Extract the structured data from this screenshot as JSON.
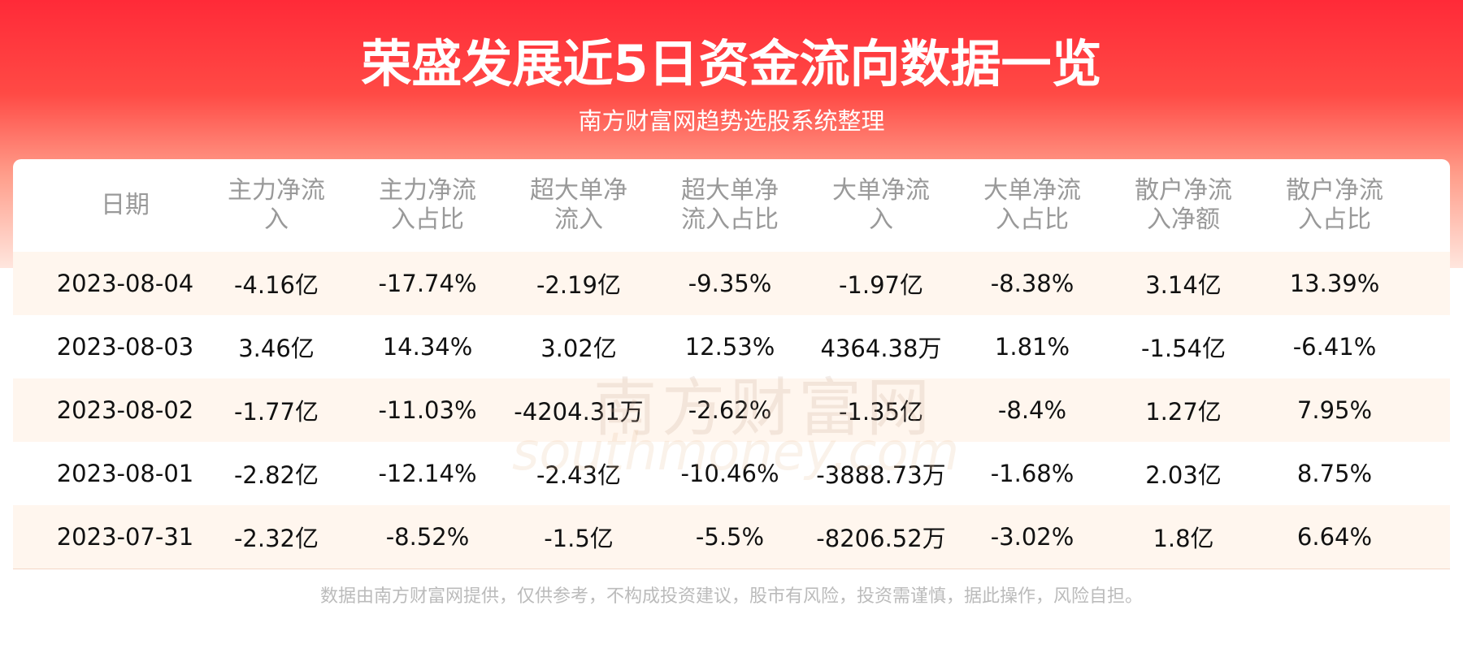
{
  "header": {
    "title": "荣盛发展近5日资金流向数据一览",
    "subtitle": "南方财富网趋势选股系统整理"
  },
  "watermark": {
    "name": "南方财富网",
    "site": "southmoney.com"
  },
  "table": {
    "columns": [
      "日期",
      "主力净流入",
      "主力净流入占比",
      "超大单净流入",
      "超大单净流入占比",
      "大单净流入",
      "大单净流入占比",
      "散户净流入净额",
      "散户净流入占比"
    ],
    "rows": [
      [
        "2023-08-04",
        "-4.16亿",
        "-17.74%",
        "-2.19亿",
        "-9.35%",
        "-1.97亿",
        "-8.38%",
        "3.14亿",
        "13.39%"
      ],
      [
        "2023-08-03",
        "3.46亿",
        "14.34%",
        "3.02亿",
        "12.53%",
        "4364.38万",
        "1.81%",
        "-1.54亿",
        "-6.41%"
      ],
      [
        "2023-08-02",
        "-1.77亿",
        "-11.03%",
        "-4204.31万",
        "-2.62%",
        "-1.35亿",
        "-8.4%",
        "1.27亿",
        "7.95%"
      ],
      [
        "2023-08-01",
        "-2.82亿",
        "-12.14%",
        "-2.43亿",
        "-10.46%",
        "-3888.73万",
        "-1.68%",
        "2.03亿",
        "8.75%"
      ],
      [
        "2023-07-31",
        "-2.32亿",
        "-8.52%",
        "-1.5亿",
        "-5.5%",
        "-8206.52万",
        "-3.02%",
        "1.8亿",
        "6.64%"
      ]
    ]
  },
  "footer": {
    "note": "数据由南方财富网提供，仅供参考，不构成投资建议，股市有风险，投资需谨慎，据此操作，风险自担。"
  }
}
